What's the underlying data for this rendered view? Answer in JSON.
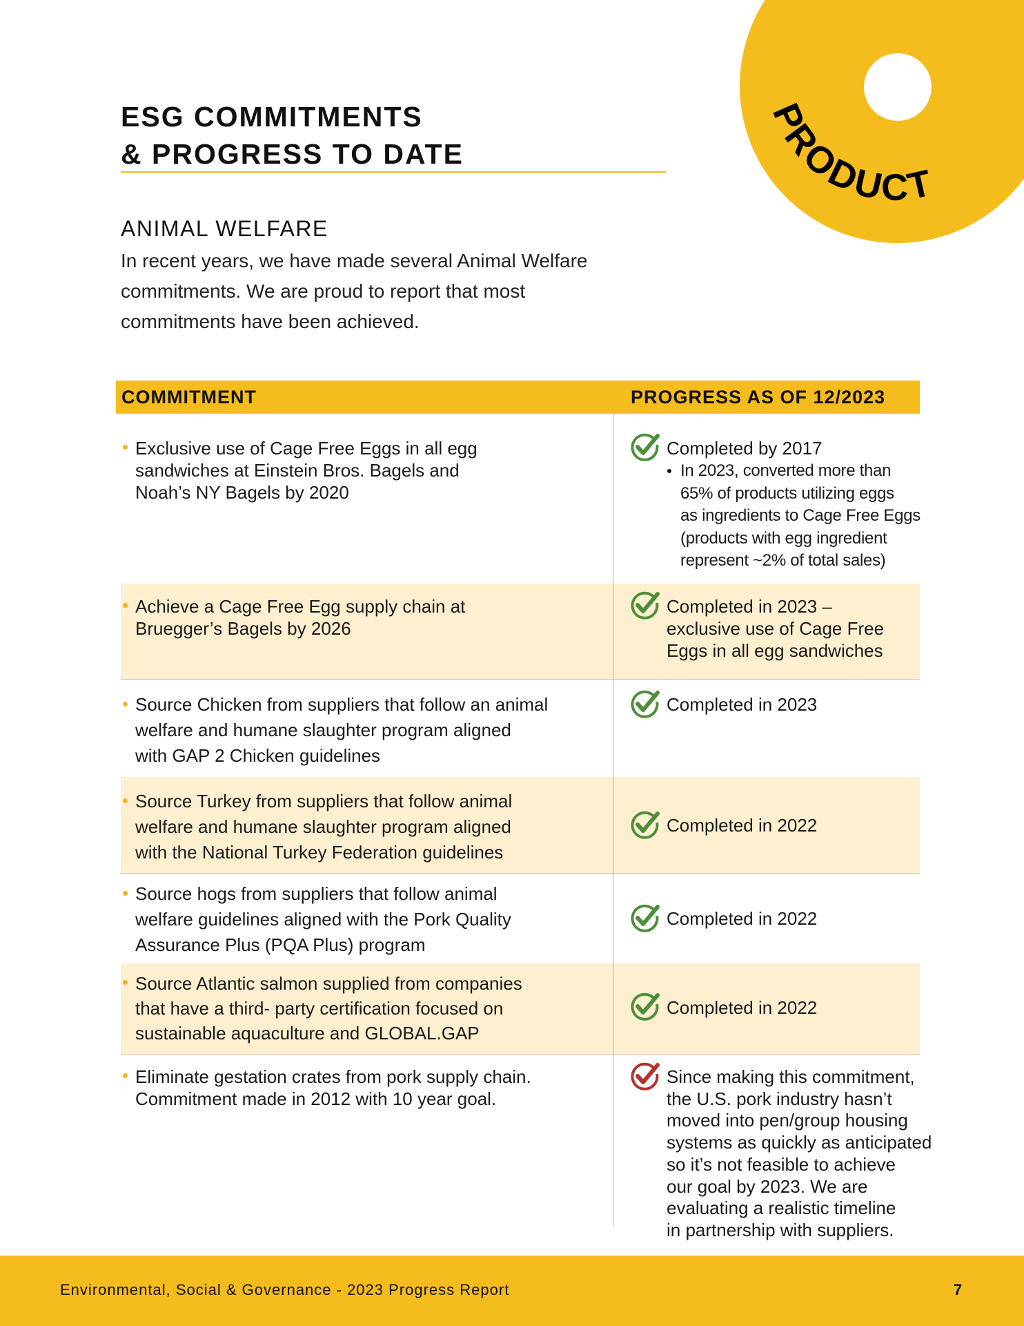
{
  "badge": {
    "label": "PRODUCT",
    "color": "#f4bc1c"
  },
  "header": {
    "title": "ESG COMMITMENTS\n& PROGRESS TO DATE"
  },
  "section": {
    "title": "ANIMAL WELFARE",
    "intro": "In recent years, we have made several Animal Welfare\ncommitments. We are proud to report that most\ncommitments have been achieved."
  },
  "table": {
    "headers": {
      "commitment": "COMMITMENT",
      "progress": "PROGRESS AS OF 12/2023"
    },
    "rows": [
      {
        "commitment": "Exclusive use of Cage Free Eggs in all egg\nsandwiches at Einstein Bros. Bagels and\nNoah’s NY Bagels by 2020",
        "status": "complete",
        "progress": "Completed by 2017",
        "sub": "In 2023, converted more than\n65% of products utilizing eggs\nas ingredients to Cage Free Eggs\n(products with egg ingredient\nrepresent ~2% of total sales)"
      },
      {
        "commitment": "Achieve a Cage Free Egg supply chain at\nBruegger’s Bagels by 2026",
        "status": "complete",
        "progress": "Completed in 2023 –\nexclusive use of Cage Free\nEggs in all egg sandwiches"
      },
      {
        "commitment": "Source Chicken from suppliers that follow an animal\nwelfare and humane slaughter program aligned\nwith GAP 2 Chicken guidelines",
        "status": "complete",
        "progress": "Completed in 2023"
      },
      {
        "commitment": "Source Turkey from suppliers that follow animal\nwelfare and humane slaughter program aligned\nwith the National Turkey Federation guidelines",
        "status": "complete",
        "progress": "Completed in 2022"
      },
      {
        "commitment": "Source hogs from suppliers that follow animal\nwelfare guidelines aligned with the Pork Quality\nAssurance Plus (PQA Plus) program",
        "status": "complete",
        "progress": "Completed in 2022"
      },
      {
        "commitment": "Source Atlantic salmon supplied from companies\nthat have a third- party certification focused on\nsustainable aquaculture and GLOBAL.GAP",
        "status": "complete",
        "progress": "Completed in 2022"
      },
      {
        "commitment": "Eliminate gestation crates from pork supply chain.\nCommitment made in 2012 with 10 year goal.",
        "status": "not-met",
        "progress": "Since making this commitment,\nthe U.S. pork industry hasn’t\nmoved into pen/group housing\nsystems as quickly as anticipated\nso it’s not feasible to achieve\nour goal by 2023. We are\nevaluating a realistic timeline\nin partnership with suppliers."
      }
    ]
  },
  "colors": {
    "accent": "#f4bc1c",
    "row_shade": "#fdefd0",
    "check_green": "#4e8f3a",
    "check_red": "#b3322c"
  },
  "footer": {
    "text": "Environmental, Social & Governance - 2023 Progress Report",
    "page": "7"
  }
}
